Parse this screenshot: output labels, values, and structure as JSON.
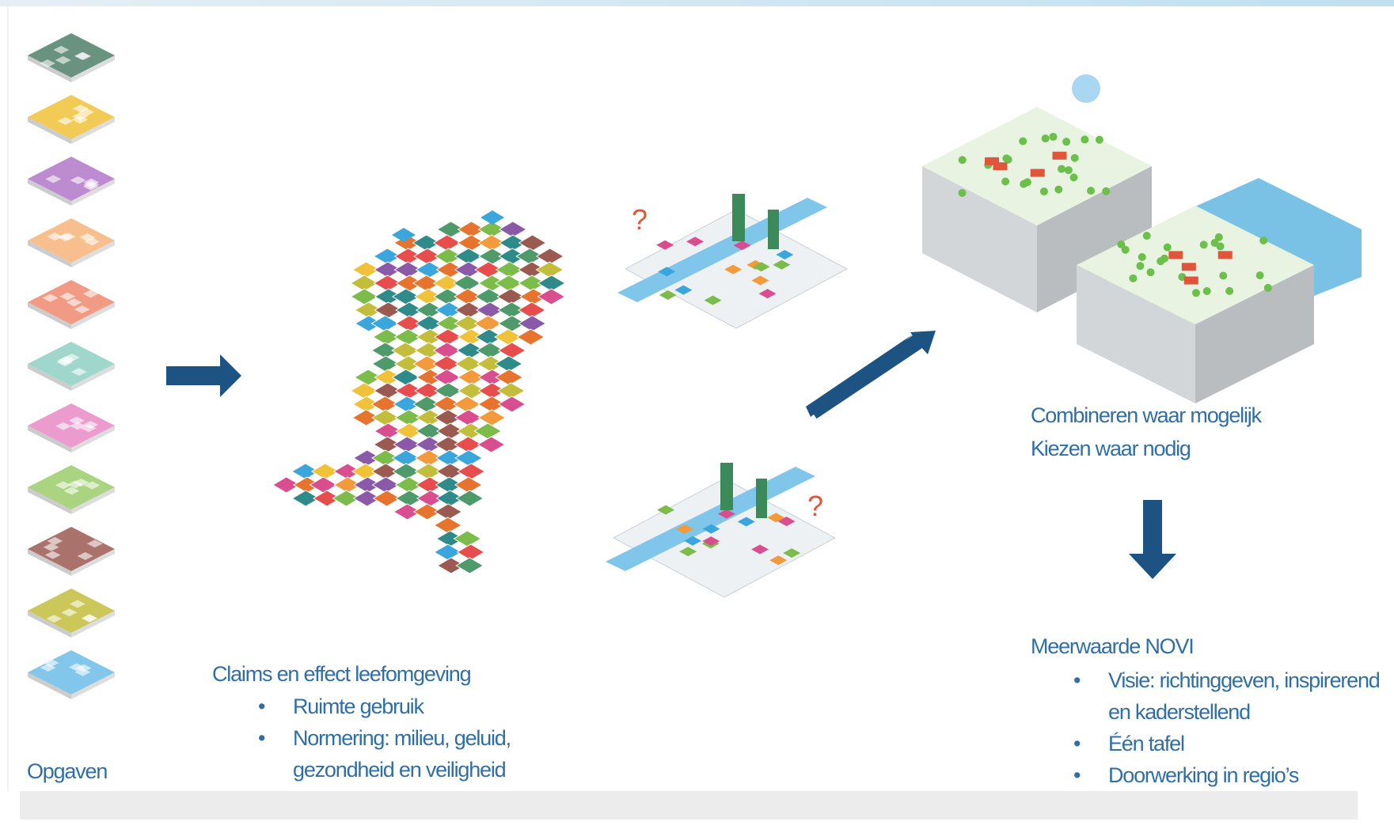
{
  "opgaven": "Opgaven",
  "claims": {
    "title": "Claims en effect leefomgeving",
    "bullets": [
      "Ruimte gebruik",
      "Normering: milieu, geluid, gezondheid en veiligheid"
    ]
  },
  "combine": {
    "lines": [
      "Combineren waar mogelijk",
      "Kiezen waar nodig"
    ]
  },
  "novi": {
    "title": "Meerwaarde NOVI",
    "bullets": [
      "Visie: richtinggeven, inspirerend en kaderstellend",
      "Één tafel",
      "Doorwerking in regio’s"
    ]
  },
  "marks": {
    "question": "?"
  }
}
